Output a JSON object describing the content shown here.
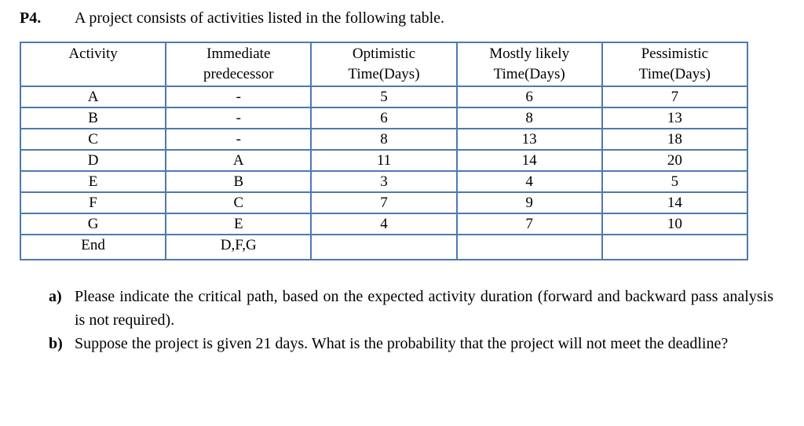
{
  "header": {
    "number": "P4.",
    "intro": "A project consists of activities listed in the following table."
  },
  "table": {
    "columns": [
      {
        "line1": "Activity",
        "line2": ""
      },
      {
        "line1": "Immediate",
        "line2": "predecessor"
      },
      {
        "line1": "Optimistic",
        "line2": "Time(Days)"
      },
      {
        "line1": "Mostly likely",
        "line2": "Time(Days)"
      },
      {
        "line1": "Pessimistic",
        "line2": "Time(Days)"
      }
    ],
    "rows": [
      {
        "activity": "A",
        "predecessor": "-",
        "optimistic": "5",
        "most_likely": "6",
        "pessimistic": "7"
      },
      {
        "activity": "B",
        "predecessor": "-",
        "optimistic": "6",
        "most_likely": "8",
        "pessimistic": "13"
      },
      {
        "activity": "C",
        "predecessor": "-",
        "optimistic": "8",
        "most_likely": "13",
        "pessimistic": "18"
      },
      {
        "activity": "D",
        "predecessor": "A",
        "optimistic": "11",
        "most_likely": "14",
        "pessimistic": "20"
      },
      {
        "activity": "E",
        "predecessor": "B",
        "optimistic": "3",
        "most_likely": "4",
        "pessimistic": "5"
      },
      {
        "activity": "F",
        "predecessor": "C",
        "optimistic": "7",
        "most_likely": "9",
        "pessimistic": "14"
      },
      {
        "activity": "G",
        "predecessor": "E",
        "optimistic": "4",
        "most_likely": "7",
        "pessimistic": "10"
      },
      {
        "activity": "End",
        "predecessor": "D,F,G",
        "optimistic": "",
        "most_likely": "",
        "pessimistic": ""
      }
    ]
  },
  "questions": [
    {
      "label": "a)",
      "text": "Please indicate the critical path, based on the expected activity duration (forward and backward pass analysis is not required)."
    },
    {
      "label": "b)",
      "text": "Suppose the project is given 21 days. What is the probability that the project will not meet the deadline?"
    }
  ],
  "colors": {
    "table_border": "#4e79b2",
    "text": "#000000",
    "background": "#ffffff"
  }
}
